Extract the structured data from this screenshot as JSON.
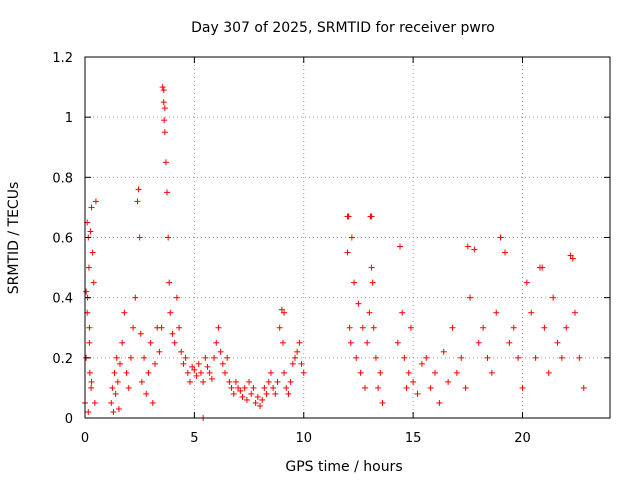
{
  "chart_data": {
    "type": "scatter",
    "title": "Day 307 of 2025, SRMTID for receiver pwro",
    "xlabel": "GPS time / hours",
    "ylabel": "SRMTID / TECUs",
    "xlim": [
      0,
      24
    ],
    "ylim": [
      0,
      1.2
    ],
    "grid": true,
    "x_ticks": [
      0,
      5,
      10,
      15,
      20
    ],
    "y_ticks": [
      0,
      0.2,
      0.4,
      0.6,
      0.8,
      1,
      1.2
    ],
    "x_tick_labels": [
      "0",
      "5",
      "10",
      "15",
      "20"
    ],
    "y_tick_labels": [
      "0",
      "0.2",
      "0.4",
      "0.6",
      "0.8",
      "1",
      "1.2"
    ],
    "marker": "+",
    "color": "#ff0000",
    "series": [
      {
        "name": "SRMTID",
        "x": [
          0.0,
          0.05,
          0.1,
          0.12,
          0.15,
          0.18,
          0.2,
          0.22,
          0.25,
          0.28,
          0.3,
          0.35,
          0.4,
          0.45,
          0.5,
          0.1,
          0.15,
          0.2,
          0.3,
          0.05,
          1.2,
          1.25,
          1.3,
          1.35,
          1.4,
          1.45,
          1.5,
          1.55,
          1.6,
          1.7,
          1.8,
          1.9,
          2.0,
          2.1,
          2.2,
          2.3,
          2.4,
          2.45,
          2.5,
          2.55,
          2.6,
          2.7,
          2.8,
          2.9,
          3.0,
          3.1,
          3.2,
          3.3,
          3.4,
          3.5,
          3.55,
          3.6,
          3.62,
          3.65,
          3.7,
          3.75,
          3.8,
          3.85,
          3.9,
          4.0,
          4.1,
          4.2,
          4.3,
          4.4,
          4.5,
          4.6,
          4.7,
          4.8,
          4.9,
          5.0,
          5.1,
          5.2,
          5.3,
          5.4,
          5.5,
          5.6,
          5.7,
          5.8,
          5.9,
          6.0,
          6.1,
          6.2,
          6.3,
          6.4,
          6.5,
          6.6,
          6.7,
          6.8,
          6.9,
          7.0,
          7.1,
          7.2,
          7.3,
          7.4,
          7.5,
          7.6,
          7.7,
          7.8,
          7.9,
          8.0,
          8.1,
          8.2,
          8.3,
          8.4,
          8.5,
          8.6,
          8.7,
          8.8,
          8.9,
          9.0,
          9.05,
          9.1,
          9.2,
          9.3,
          9.4,
          9.5,
          9.6,
          9.7,
          9.8,
          9.9,
          10.0,
          12.0,
          12.05,
          12.1,
          12.15,
          12.2,
          12.3,
          12.4,
          12.5,
          12.6,
          12.7,
          12.8,
          12.9,
          13.0,
          13.05,
          13.1,
          13.15,
          13.2,
          13.3,
          13.4,
          13.5,
          13.6,
          14.3,
          14.4,
          14.5,
          14.6,
          14.7,
          14.8,
          14.9,
          15.0,
          15.2,
          15.4,
          15.6,
          15.8,
          16.0,
          16.2,
          16.4,
          16.6,
          16.8,
          17.0,
          17.2,
          17.4,
          17.6,
          17.8,
          18.0,
          18.2,
          18.4,
          18.6,
          18.8,
          19.0,
          19.2,
          19.4,
          19.6,
          19.8,
          20.0,
          20.2,
          20.4,
          20.6,
          20.8,
          21.0,
          21.2,
          21.4,
          21.6,
          21.8,
          22.0,
          22.2,
          22.4,
          22.6,
          22.8
        ],
        "y": [
          0.05,
          0.2,
          0.65,
          0.4,
          0.6,
          0.5,
          0.3,
          0.15,
          0.62,
          0.1,
          0.7,
          0.55,
          0.45,
          0.05,
          0.72,
          0.35,
          0.02,
          0.25,
          0.12,
          0.42,
          0.05,
          0.1,
          0.02,
          0.15,
          0.08,
          0.2,
          0.12,
          0.03,
          0.18,
          0.25,
          0.35,
          0.15,
          0.1,
          0.2,
          0.3,
          0.4,
          0.72,
          0.76,
          0.6,
          0.28,
          0.12,
          0.2,
          0.08,
          0.15,
          0.25,
          0.05,
          0.18,
          0.3,
          0.22,
          0.3,
          1.1,
          1.05,
          0.99,
          0.95,
          0.85,
          0.75,
          0.6,
          0.45,
          0.35,
          0.28,
          0.25,
          0.4,
          0.3,
          0.22,
          0.18,
          0.2,
          0.15,
          0.12,
          0.17,
          0.16,
          0.14,
          0.18,
          0.15,
          0.12,
          0.2,
          0.17,
          0.15,
          0.13,
          0.2,
          0.25,
          0.3,
          0.22,
          0.18,
          0.15,
          0.2,
          0.12,
          0.1,
          0.08,
          0.12,
          0.1,
          0.09,
          0.07,
          0.1,
          0.06,
          0.12,
          0.08,
          0.1,
          0.05,
          0.07,
          0.04,
          0.06,
          0.1,
          0.08,
          0.12,
          0.15,
          0.1,
          0.08,
          0.12,
          0.3,
          0.36,
          0.25,
          0.15,
          0.1,
          0.08,
          0.12,
          0.18,
          0.2,
          0.22,
          0.25,
          0.18,
          0.15,
          0.55,
          0.67,
          0.3,
          0.25,
          0.6,
          0.45,
          0.2,
          0.38,
          0.15,
          0.3,
          0.1,
          0.25,
          0.35,
          0.67,
          0.5,
          0.45,
          0.3,
          0.2,
          0.1,
          0.15,
          0.05,
          0.25,
          0.57,
          0.35,
          0.2,
          0.1,
          0.15,
          0.3,
          0.12,
          0.08,
          0.18,
          0.2,
          0.1,
          0.15,
          0.05,
          0.22,
          0.12,
          0.3,
          0.15,
          0.2,
          0.1,
          0.4,
          0.56,
          0.25,
          0.3,
          0.2,
          0.15,
          0.35,
          0.6,
          0.55,
          0.25,
          0.3,
          0.2,
          0.1,
          0.45,
          0.35,
          0.2,
          0.5,
          0.3,
          0.15,
          0.4,
          0.25,
          0.2,
          0.3,
          0.54,
          0.35,
          0.2,
          0.1
        ]
      }
    ],
    "extra_points": [
      [
        5.4,
        0.0
      ],
      [
        9.1,
        0.35
      ],
      [
        3.6,
        1.09
      ],
      [
        3.65,
        1.03
      ],
      [
        13.1,
        0.67
      ],
      [
        12.0,
        0.67
      ],
      [
        22.3,
        0.53
      ],
      [
        19.0,
        0.6
      ],
      [
        17.5,
        0.57
      ],
      [
        20.9,
        0.5
      ]
    ]
  }
}
